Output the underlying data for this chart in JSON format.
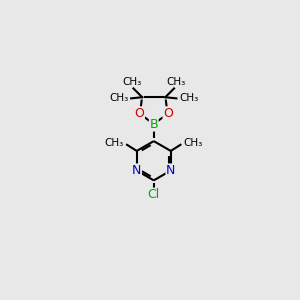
{
  "background_color": "#e8e8e8",
  "atom_colors": {
    "C": "#000000",
    "N": "#0000cc",
    "O": "#cc0000",
    "B": "#00aa00",
    "Cl": "#00aa00"
  },
  "bond_color": "#000000",
  "bond_width": 1.5,
  "font_size_atom": 9,
  "font_size_methyl": 7.5,
  "xlim": [
    0,
    10
  ],
  "ylim": [
    0,
    10
  ]
}
